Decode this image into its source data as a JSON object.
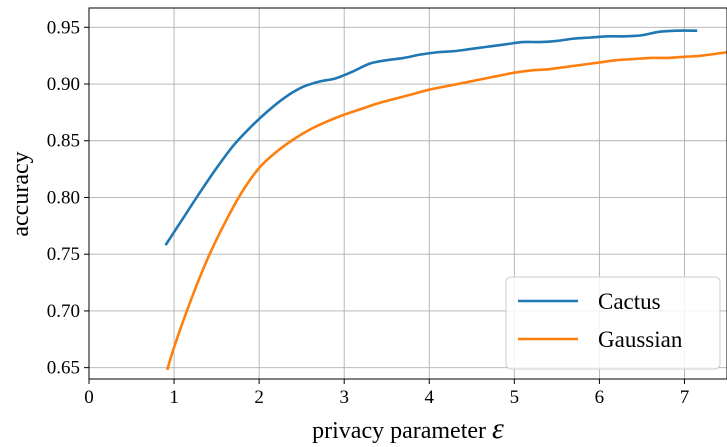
{
  "chart_data": {
    "type": "line",
    "title": "",
    "xlabel": "privacy parameter",
    "xlabel_symbol": "ε",
    "ylabel": "accuracy",
    "xlim": [
      0,
      7.5
    ],
    "ylim": [
      0.64,
      0.967
    ],
    "xticks": [
      0,
      1,
      2,
      3,
      4,
      5,
      6,
      7
    ],
    "xtick_labels": [
      "0",
      "1",
      "2",
      "3",
      "4",
      "5",
      "6",
      "7"
    ],
    "yticks": [
      0.65,
      0.7,
      0.75,
      0.8,
      0.85,
      0.9,
      0.95
    ],
    "ytick_labels": [
      "0.65",
      "0.70",
      "0.75",
      "0.80",
      "0.85",
      "0.90",
      "0.95"
    ],
    "grid": true,
    "legend_position": "bottom-right",
    "series": [
      {
        "name": "Cactus",
        "color": "#1f77b4",
        "x": [
          0.9,
          1.1,
          1.3,
          1.5,
          1.7,
          1.9,
          2.1,
          2.3,
          2.5,
          2.7,
          2.9,
          3.1,
          3.3,
          3.5,
          3.7,
          3.9,
          4.1,
          4.3,
          4.5,
          4.7,
          4.9,
          5.1,
          5.3,
          5.5,
          5.7,
          5.9,
          6.1,
          6.3,
          6.5,
          6.7,
          6.9,
          7.15
        ],
        "y": [
          0.758,
          0.781,
          0.804,
          0.826,
          0.846,
          0.862,
          0.876,
          0.888,
          0.897,
          0.902,
          0.905,
          0.911,
          0.918,
          0.921,
          0.923,
          0.926,
          0.928,
          0.929,
          0.931,
          0.933,
          0.935,
          0.937,
          0.937,
          0.938,
          0.94,
          0.941,
          0.942,
          0.942,
          0.943,
          0.946,
          0.947,
          0.947
        ]
      },
      {
        "name": "Gaussian",
        "color": "#ff7f0e",
        "x": [
          0.92,
          1.0,
          1.2,
          1.4,
          1.6,
          1.8,
          2.0,
          2.2,
          2.4,
          2.6,
          2.8,
          3.0,
          3.2,
          3.4,
          3.6,
          3.8,
          4.0,
          4.2,
          4.4,
          4.6,
          4.8,
          5.0,
          5.2,
          5.4,
          5.6,
          5.8,
          6.0,
          6.2,
          6.4,
          6.6,
          6.8,
          7.0,
          7.2,
          7.5
        ],
        "y": [
          0.648,
          0.668,
          0.71,
          0.747,
          0.778,
          0.805,
          0.826,
          0.84,
          0.851,
          0.86,
          0.867,
          0.873,
          0.878,
          0.883,
          0.887,
          0.891,
          0.895,
          0.898,
          0.901,
          0.904,
          0.907,
          0.91,
          0.912,
          0.913,
          0.915,
          0.917,
          0.919,
          0.921,
          0.922,
          0.923,
          0.923,
          0.924,
          0.925,
          0.928
        ]
      }
    ]
  }
}
